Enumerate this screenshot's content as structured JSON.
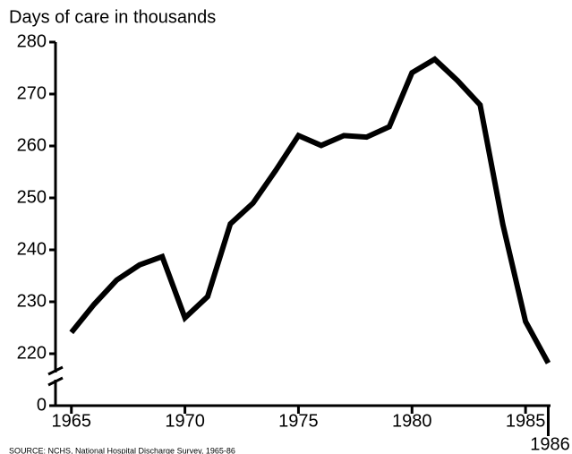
{
  "chart_data": {
    "type": "line",
    "title": "Days of care in thousands",
    "source": "SOURCE: NCHS, National Hospital Discharge Survey, 1965-86",
    "x": [
      1965,
      1966,
      1967,
      1968,
      1969,
      1970,
      1971,
      1972,
      1973,
      1974,
      1975,
      1976,
      1977,
      1978,
      1979,
      1980,
      1981,
      1982,
      1983,
      1984,
      1985,
      1986
    ],
    "series": [
      {
        "name": "Days of care",
        "color": "#000000",
        "values": [
          224.1,
          229.5,
          234.2,
          237.1,
          238.7,
          226.9,
          231,
          245,
          249,
          255.3,
          262,
          260.1,
          262,
          261.7,
          263.7,
          274.1,
          276.7,
          272.6,
          267.9,
          244.9,
          226.2,
          218.2
        ]
      }
    ],
    "xlim": [
      1964.3,
      1986.1
    ],
    "xticks": [
      1965,
      1970,
      1975,
      1980,
      1985,
      1986
    ],
    "ylim": [
      0,
      280
    ],
    "axis_break": [
      0,
      210
    ],
    "yticks": [
      0,
      220,
      230,
      240,
      250,
      260,
      270,
      280
    ]
  }
}
